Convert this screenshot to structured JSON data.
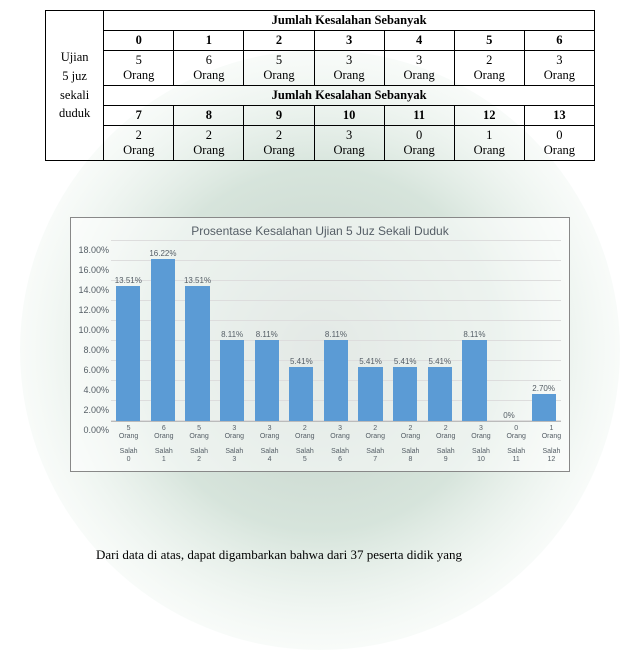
{
  "table": {
    "side_label_lines": [
      "Ujian",
      "5  juz",
      "sekali",
      "duduk"
    ],
    "band_label": "Jumlah Kesalahan Sebanyak",
    "unit": "Orang",
    "row1": {
      "indexes": [
        "0",
        "1",
        "2",
        "3",
        "4",
        "5",
        "6"
      ],
      "values": [
        "5",
        "6",
        "5",
        "3",
        "3",
        "2",
        "3"
      ]
    },
    "row2": {
      "indexes": [
        "7",
        "8",
        "9",
        "10",
        "11",
        "12",
        "13"
      ],
      "values": [
        "2",
        "2",
        "2",
        "3",
        "0",
        "1",
        "0"
      ]
    }
  },
  "chart": {
    "type": "bar",
    "title": "Prosentase Kesalahan Ujian 5 Juz Sekali Duduk",
    "ylim_max": 18.0,
    "ytick_step": 2.0,
    "yticks": [
      "0.00%",
      "2.00%",
      "4.00%",
      "6.00%",
      "8.00%",
      "10.00%",
      "12.00%",
      "14.00%",
      "16.00%",
      "18.00%"
    ],
    "bar_color": "#5b9bd5",
    "grid_color": "#dddddd",
    "label_color": "#555e66",
    "unit": "Orang",
    "error_label_prefix": "Salah",
    "bars": [
      {
        "value": 13.51,
        "label": "13.51%",
        "count": "5",
        "err": "0"
      },
      {
        "value": 16.22,
        "label": "16.22%",
        "count": "6",
        "err": "1"
      },
      {
        "value": 13.51,
        "label": "13.51%",
        "count": "5",
        "err": "2"
      },
      {
        "value": 8.11,
        "label": "8.11%",
        "count": "3",
        "err": "3"
      },
      {
        "value": 8.11,
        "label": "8.11%",
        "count": "3",
        "err": "4"
      },
      {
        "value": 5.41,
        "label": "5.41%",
        "count": "2",
        "err": "5"
      },
      {
        "value": 8.11,
        "label": "8.11%",
        "count": "3",
        "err": "6"
      },
      {
        "value": 5.41,
        "label": "5.41%",
        "count": "2",
        "err": "7"
      },
      {
        "value": 5.41,
        "label": "5.41%",
        "count": "2",
        "err": "8"
      },
      {
        "value": 5.41,
        "label": "5.41%",
        "count": "2",
        "err": "9"
      },
      {
        "value": 8.11,
        "label": "8.11%",
        "count": "3",
        "err": "10"
      },
      {
        "value": 0.0,
        "label": "0%",
        "count": "0",
        "err": "11"
      },
      {
        "value": 2.7,
        "label": "2.70%",
        "count": "1",
        "err": "12"
      }
    ]
  },
  "body_text": "Dari data di atas, dapat digambarkan bahwa dari 37 peserta didik yang"
}
